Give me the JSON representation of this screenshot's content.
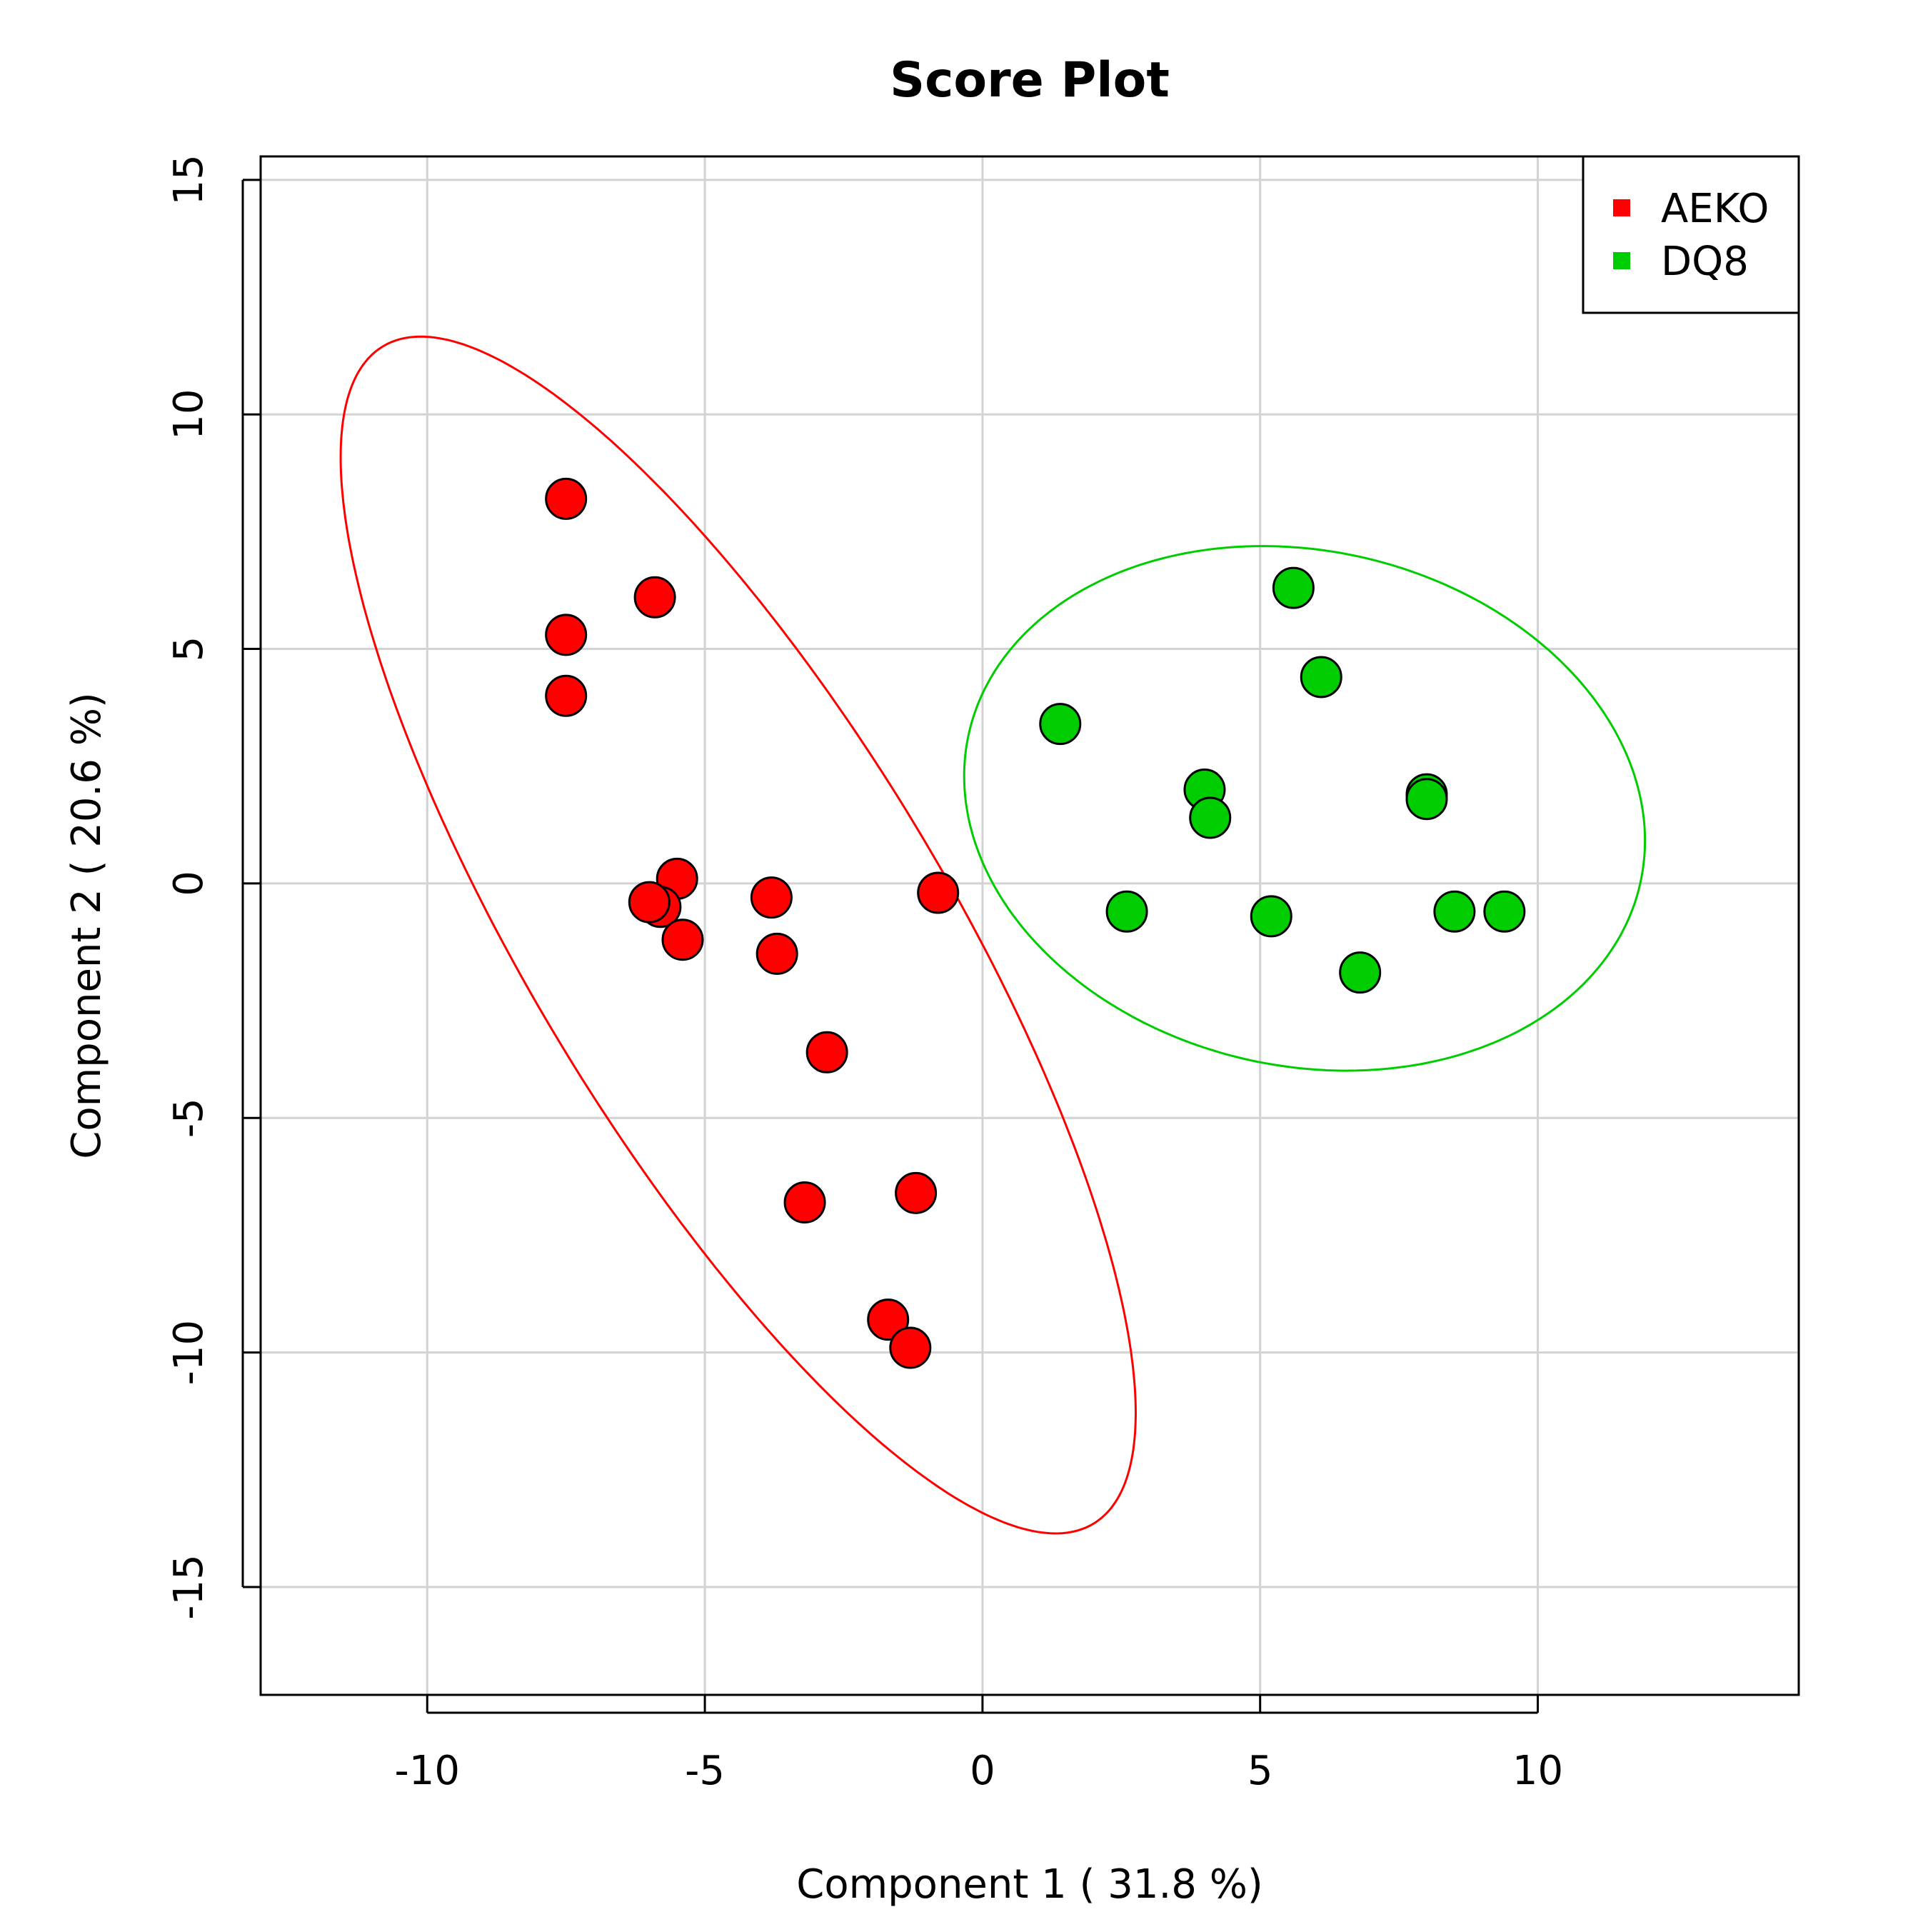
{
  "chart_data": {
    "type": "scatter",
    "title": "Score Plot",
    "xlabel": "Component 1 ( 31.8 %)",
    "ylabel": "Component 2 ( 20.6 %)",
    "xlim": [
      -13,
      14.7
    ],
    "ylim": [
      -17.3,
      15.5
    ],
    "x_ticks": [
      "-10",
      "-5",
      "0",
      "5",
      "10"
    ],
    "y_ticks": [
      "-15",
      "-10",
      "-5",
      "0",
      "5",
      "10",
      "15"
    ],
    "x_tick_values": [
      -10,
      -5,
      0,
      5,
      10
    ],
    "y_tick_values": [
      -15,
      -10,
      -5,
      0,
      5,
      10,
      15
    ],
    "grid": true,
    "legend_position": "top-right",
    "series": [
      {
        "name": "AEKO",
        "color": "#ff0000",
        "points": [
          [
            -7.5,
            8.2
          ],
          [
            -5.9,
            6.1
          ],
          [
            -7.5,
            5.3
          ],
          [
            -7.5,
            4.0
          ],
          [
            -5.5,
            0.1
          ],
          [
            -5.8,
            -0.5
          ],
          [
            -6.0,
            -0.4
          ],
          [
            -5.4,
            -1.2
          ],
          [
            -3.8,
            -0.3
          ],
          [
            -3.7,
            -1.5
          ],
          [
            -0.8,
            -0.2
          ],
          [
            -2.8,
            -3.6
          ],
          [
            -3.2,
            -6.8
          ],
          [
            -1.2,
            -6.6
          ],
          [
            -1.7,
            -9.3
          ],
          [
            -1.3,
            -9.9
          ]
        ],
        "ellipse": {
          "center": [
            -4.4,
            -1.1
          ],
          "semi_axes": [
            14.1,
            3.9
          ],
          "angle_deg": 116.3
        }
      },
      {
        "name": "DQ8",
        "color": "#00cd00",
        "points": [
          [
            5.6,
            6.3
          ],
          [
            6.1,
            4.4
          ],
          [
            1.4,
            3.4
          ],
          [
            4.0,
            2.0
          ],
          [
            4.1,
            1.4
          ],
          [
            8.0,
            1.9
          ],
          [
            8.0,
            1.8
          ],
          [
            2.6,
            -0.6
          ],
          [
            5.2,
            -0.7
          ],
          [
            8.5,
            -0.6
          ],
          [
            9.4,
            -0.6
          ],
          [
            6.8,
            -1.9
          ]
        ],
        "ellipse": {
          "center": [
            5.8,
            1.6
          ],
          "semi_axes": [
            6.3,
            5.4
          ],
          "angle_deg": 153.4
        }
      }
    ]
  }
}
